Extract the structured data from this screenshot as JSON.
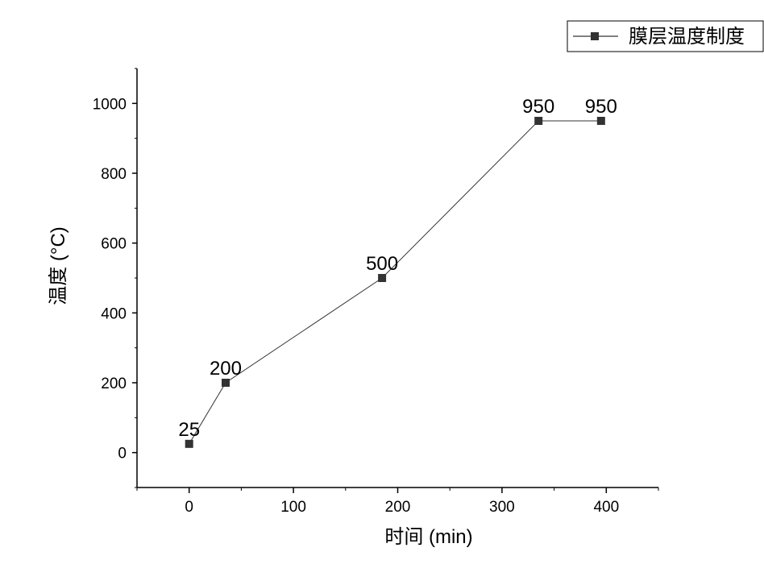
{
  "chart_data": {
    "type": "line",
    "title": "",
    "xlabel": "时间 (min)",
    "ylabel": "温度 (°C)",
    "xlim": [
      -50,
      450
    ],
    "ylim": [
      -100,
      1100
    ],
    "xticks": [
      0,
      100,
      200,
      300,
      400
    ],
    "yticks": [
      0,
      200,
      400,
      600,
      800,
      1000
    ],
    "grid": false,
    "legend_position": "top-right",
    "series": [
      {
        "name": "膜层温度制度",
        "marker": "square",
        "color": "#333333",
        "x": [
          0,
          35,
          185,
          335,
          395
        ],
        "y": [
          25,
          200,
          500,
          950,
          950
        ],
        "labels": [
          "25",
          "200",
          "500",
          "950",
          "950"
        ]
      }
    ]
  }
}
